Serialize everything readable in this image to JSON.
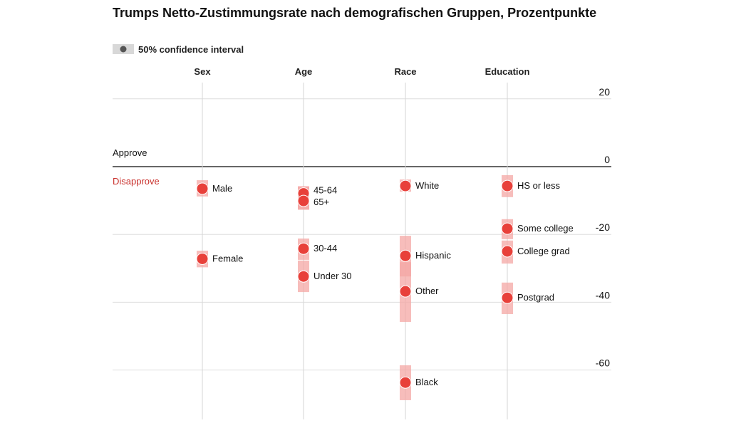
{
  "chart_data": {
    "type": "scatter",
    "title": "Trumps Netto-Zustimmungsrate nach demografischen Gruppen, Prozentpunkte",
    "legend": {
      "label": "50% confidence interval",
      "placement": "top-left"
    },
    "ylim": [
      -70,
      22
    ],
    "yticks": [
      20,
      0,
      -20,
      -40,
      -60
    ],
    "zero_labels": {
      "above": "Approve",
      "below": "Disapprove"
    },
    "grid": true,
    "colors": {
      "point": "#e8403a",
      "ci": "#f4a7a4",
      "disapprove_text": "#c9302c",
      "zero_line": "#666666",
      "grid": "#dddddd"
    },
    "categories": [
      "Sex",
      "Age",
      "Race",
      "Education"
    ],
    "points": [
      {
        "category": "Sex",
        "label": "Male",
        "value": -6.5,
        "ci": [
          -4,
          -8.8
        ]
      },
      {
        "category": "Sex",
        "label": "Female",
        "value": -27.2,
        "ci": [
          -24.8,
          -29.7
        ]
      },
      {
        "category": "Age",
        "label": "45-64",
        "value": -7.9,
        "ci": [
          -5.8,
          -12.7
        ]
      },
      {
        "category": "Age",
        "label": "65+",
        "value": -10.1,
        "ci": [
          -5.8,
          -12.7
        ]
      },
      {
        "category": "Age",
        "label": "30-44",
        "value": -24.2,
        "ci": [
          -21.2,
          -27.5
        ]
      },
      {
        "category": "Age",
        "label": "Under 30",
        "value": -32.4,
        "ci": [
          -27.7,
          -37
        ]
      },
      {
        "category": "Race",
        "label": "White",
        "value": -5.7,
        "ci": [
          -3.8,
          -7.4
        ]
      },
      {
        "category": "Race",
        "label": "Hispanic",
        "value": -26.3,
        "ci": [
          -20.4,
          -32.4
        ]
      },
      {
        "category": "Race",
        "label": "Other",
        "value": -36.8,
        "ci": [
          -28.2,
          -45.8
        ]
      },
      {
        "category": "Race",
        "label": "Black",
        "value": -63.7,
        "ci": [
          -58.6,
          -68.9
        ]
      },
      {
        "category": "Education",
        "label": "HS or less",
        "value": -5.7,
        "ci": [
          -2.5,
          -9
        ]
      },
      {
        "category": "Education",
        "label": "Some college",
        "value": -18.3,
        "ci": [
          -15.5,
          -21.4
        ]
      },
      {
        "category": "Education",
        "label": "College grad",
        "value": -25,
        "ci": [
          -21.8,
          -28.6
        ]
      },
      {
        "category": "Education",
        "label": "Postgrad",
        "value": -38.7,
        "ci": [
          -34.2,
          -43.5
        ]
      }
    ]
  }
}
